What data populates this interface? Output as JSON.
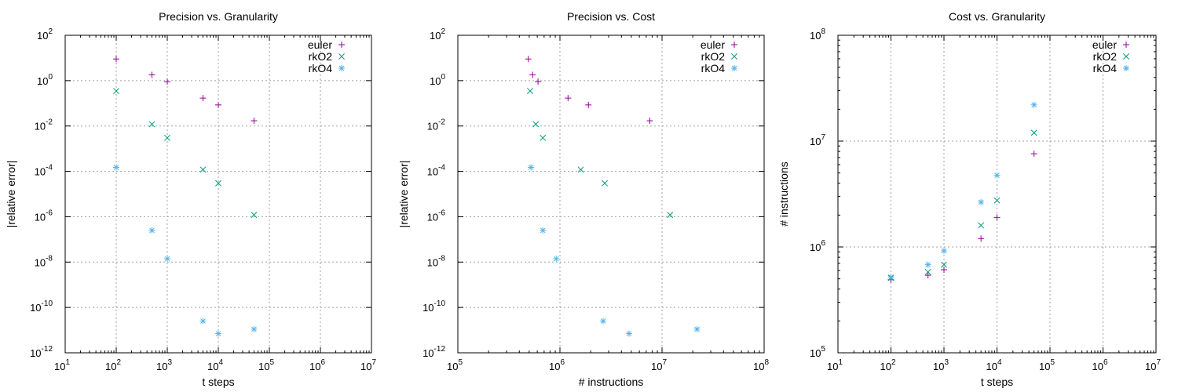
{
  "colors": {
    "euler": "#94009a",
    "rkO2": "#009e73",
    "rkO4": "#56b4e9"
  },
  "chart_data": [
    {
      "type": "scatter",
      "title": "Precision vs. Granularity",
      "xlabel": "t steps",
      "ylabel": "|relative error|",
      "xscale": "log",
      "yscale": "log",
      "xlim": [
        10,
        10000000
      ],
      "ylim": [
        1e-12,
        100
      ],
      "xticks": [
        {
          "v": 10,
          "b": "10",
          "e": "1"
        },
        {
          "v": 100,
          "b": "10",
          "e": "2"
        },
        {
          "v": 1000,
          "b": "10",
          "e": "3"
        },
        {
          "v": 10000,
          "b": "10",
          "e": "4"
        },
        {
          "v": 100000,
          "b": "10",
          "e": "5"
        },
        {
          "v": 1000000,
          "b": "10",
          "e": "6"
        },
        {
          "v": 10000000,
          "b": "10",
          "e": "7"
        }
      ],
      "yticks": [
        {
          "v": 1e-12,
          "b": "10",
          "e": "-12"
        },
        {
          "v": 1e-10,
          "b": "10",
          "e": "-10"
        },
        {
          "v": 1e-08,
          "b": "10",
          "e": "-8"
        },
        {
          "v": 1e-06,
          "b": "10",
          "e": "-6"
        },
        {
          "v": 0.0001,
          "b": "10",
          "e": "-4"
        },
        {
          "v": 0.01,
          "b": "10",
          "e": "-2"
        },
        {
          "v": 1,
          "b": "10",
          "e": "0"
        },
        {
          "v": 100,
          "b": "10",
          "e": "2"
        }
      ],
      "grid": true,
      "legend_position": "top-right",
      "series": [
        {
          "name": "euler",
          "marker": "plus",
          "x": [
            100,
            500,
            1000,
            5000,
            10000,
            50000
          ],
          "y": [
            9,
            1.8,
            0.9,
            0.17,
            0.085,
            0.017
          ]
        },
        {
          "name": "rkO2",
          "marker": "cross",
          "x": [
            100,
            500,
            1000,
            5000,
            10000,
            50000
          ],
          "y": [
            0.35,
            0.012,
            0.003,
            0.00012,
            3e-05,
            1.2e-06
          ]
        },
        {
          "name": "rkO4",
          "marker": "star",
          "x": [
            100,
            500,
            1000,
            5000,
            10000,
            50000
          ],
          "y": [
            0.00015,
            2.5e-07,
            1.4e-08,
            2.5e-11,
            7e-12,
            1.1e-11
          ]
        }
      ]
    },
    {
      "type": "scatter",
      "title": "Precision vs. Cost",
      "xlabel": "# instructions",
      "ylabel": "|relative error|",
      "xscale": "log",
      "yscale": "log",
      "xlim": [
        100000,
        100000000
      ],
      "ylim": [
        1e-12,
        100
      ],
      "xticks": [
        {
          "v": 100000,
          "b": "10",
          "e": "5"
        },
        {
          "v": 1000000,
          "b": "10",
          "e": "6"
        },
        {
          "v": 10000000,
          "b": "10",
          "e": "7"
        },
        {
          "v": 100000000,
          "b": "10",
          "e": "8"
        }
      ],
      "yticks": [
        {
          "v": 1e-12,
          "b": "10",
          "e": "-12"
        },
        {
          "v": 1e-10,
          "b": "10",
          "e": "-10"
        },
        {
          "v": 1e-08,
          "b": "10",
          "e": "-8"
        },
        {
          "v": 1e-06,
          "b": "10",
          "e": "-6"
        },
        {
          "v": 0.0001,
          "b": "10",
          "e": "-4"
        },
        {
          "v": 0.01,
          "b": "10",
          "e": "-2"
        },
        {
          "v": 1,
          "b": "10",
          "e": "0"
        },
        {
          "v": 100,
          "b": "10",
          "e": "2"
        }
      ],
      "grid": true,
      "legend_position": "top-right",
      "series": [
        {
          "name": "euler",
          "marker": "plus",
          "x": [
            490000,
            540000,
            610000,
            1200000,
            1900000,
            7600000
          ],
          "y": [
            9,
            1.8,
            0.9,
            0.17,
            0.085,
            0.017
          ]
        },
        {
          "name": "rkO2",
          "marker": "cross",
          "x": [
            510000,
            580000,
            680000,
            1600000,
            2750000,
            12000000
          ],
          "y": [
            0.35,
            0.012,
            0.003,
            0.00012,
            3e-05,
            1.2e-06
          ]
        },
        {
          "name": "rkO4",
          "marker": "star",
          "x": [
            520000,
            680000,
            920000,
            2650000,
            4750000,
            22000000
          ],
          "y": [
            0.00015,
            2.5e-07,
            1.4e-08,
            2.5e-11,
            7e-12,
            1.1e-11
          ]
        }
      ]
    },
    {
      "type": "scatter",
      "title": "Cost vs. Granularity",
      "xlabel": "t steps",
      "ylabel": "# instructions",
      "xscale": "log",
      "yscale": "log",
      "xlim": [
        10,
        10000000
      ],
      "ylim": [
        100000,
        100000000
      ],
      "xticks": [
        {
          "v": 10,
          "b": "10",
          "e": "1"
        },
        {
          "v": 100,
          "b": "10",
          "e": "2"
        },
        {
          "v": 1000,
          "b": "10",
          "e": "3"
        },
        {
          "v": 10000,
          "b": "10",
          "e": "4"
        },
        {
          "v": 100000,
          "b": "10",
          "e": "5"
        },
        {
          "v": 1000000,
          "b": "10",
          "e": "6"
        },
        {
          "v": 10000000,
          "b": "10",
          "e": "7"
        }
      ],
      "yticks": [
        {
          "v": 100000,
          "b": "10",
          "e": "5"
        },
        {
          "v": 1000000,
          "b": "10",
          "e": "6"
        },
        {
          "v": 10000000,
          "b": "10",
          "e": "7"
        },
        {
          "v": 100000000,
          "b": "10",
          "e": "8"
        }
      ],
      "grid": true,
      "legend_position": "top-right",
      "series": [
        {
          "name": "euler",
          "marker": "plus",
          "x": [
            100,
            500,
            1000,
            5000,
            10000,
            50000
          ],
          "y": [
            490000,
            540000,
            610000,
            1200000,
            1900000,
            7600000
          ]
        },
        {
          "name": "rkO2",
          "marker": "cross",
          "x": [
            100,
            500,
            1000,
            5000,
            10000,
            50000
          ],
          "y": [
            510000,
            580000,
            680000,
            1600000,
            2750000,
            12000000
          ]
        },
        {
          "name": "rkO4",
          "marker": "star",
          "x": [
            100,
            500,
            1000,
            5000,
            10000,
            50000
          ],
          "y": [
            520000,
            680000,
            920000,
            2650000,
            4750000,
            22000000
          ]
        }
      ]
    }
  ]
}
